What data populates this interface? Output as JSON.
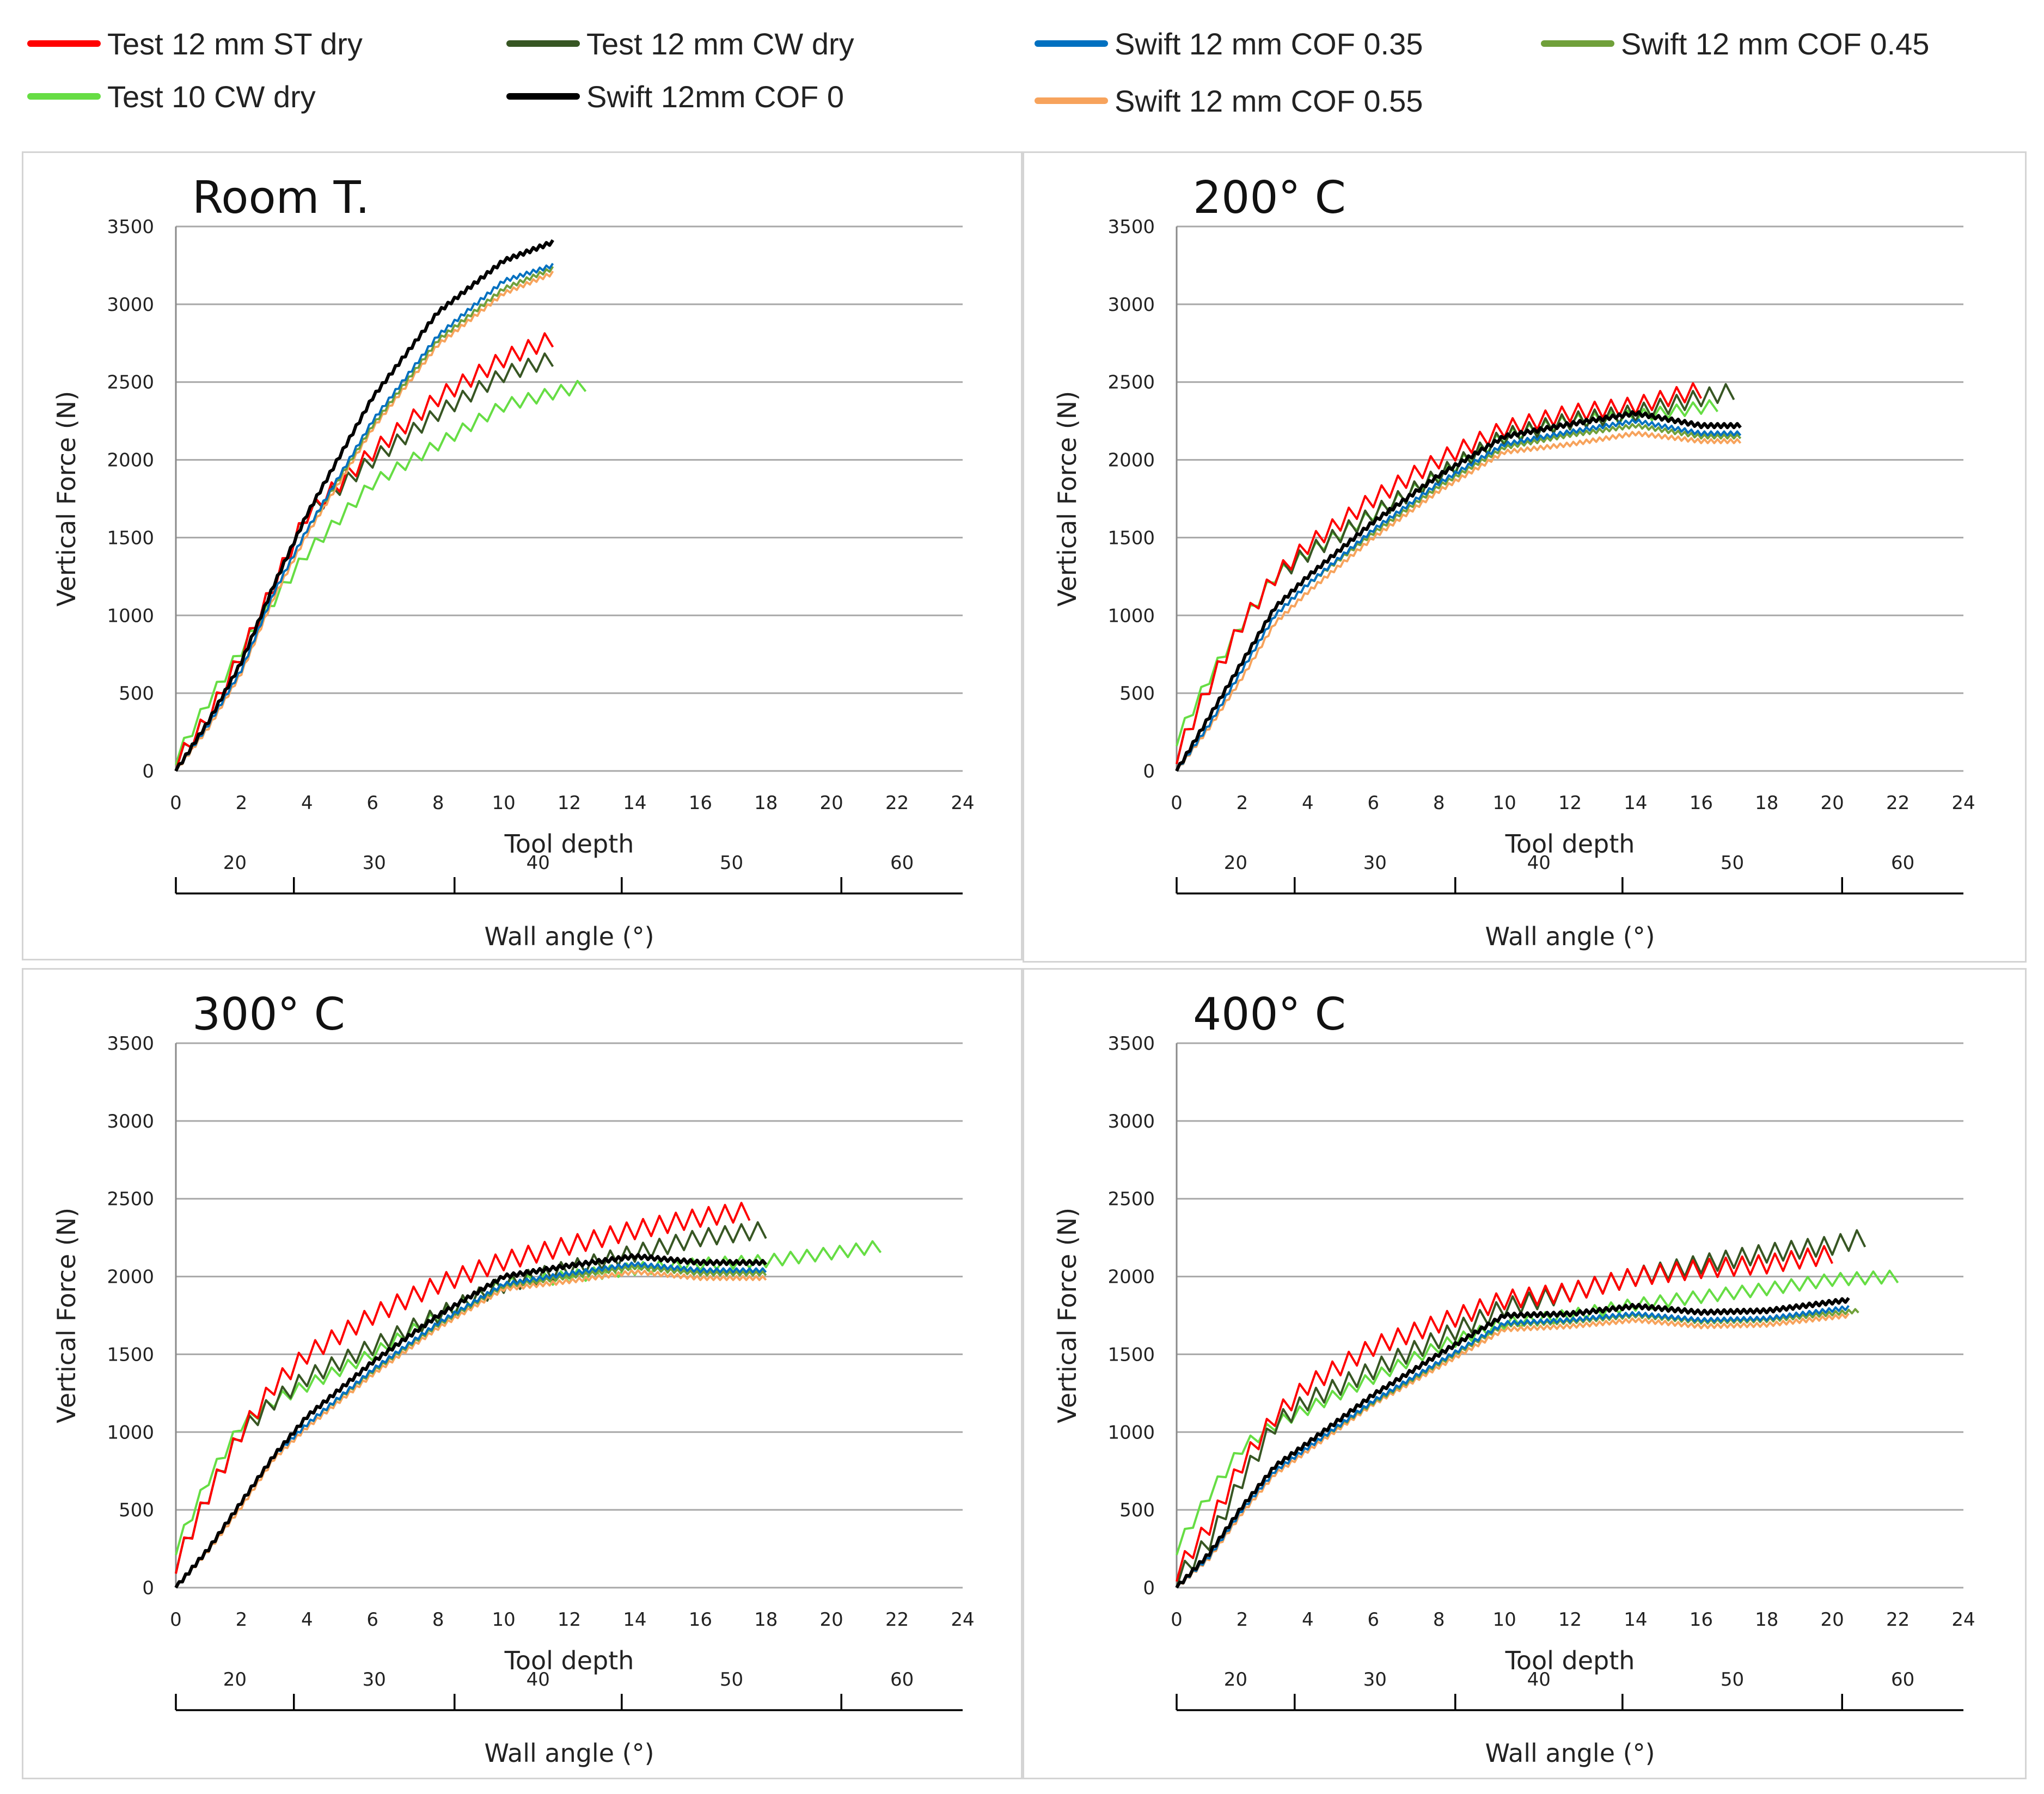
{
  "legend": [
    {
      "label": "Test 12 mm ST dry",
      "color": "#ff0000"
    },
    {
      "label": "Test 12 mm CW dry",
      "color": "#375623"
    },
    {
      "label": "Swift 12 mm COF 0.35",
      "color": "#0070c0"
    },
    {
      "label": "Swift 12 mm COF 0.45",
      "color": "#70a03a"
    },
    {
      "label": "Test 10 CW dry",
      "color": "#66dd44"
    },
    {
      "label": "Swift 12mm COF 0",
      "color": "#000000"
    },
    {
      "label": "Swift 12 mm COF 0.55",
      "color": "#f7a35c"
    }
  ],
  "chart_data": [
    {
      "type": "line",
      "title": "Room T.",
      "xlabel": "Tool depth",
      "ylabel": "Vertical Force (N)",
      "secondary_axis_label": "Wall angle (°)",
      "xlim": [
        0,
        24
      ],
      "ylim": [
        0,
        3500
      ],
      "x_ticks": [
        "0",
        "2",
        "4",
        "6",
        "8",
        "10",
        "12",
        "14",
        "16",
        "18",
        "20",
        "22",
        "24"
      ],
      "y_ticks": [
        "0",
        "500",
        "1000",
        "1500",
        "2000",
        "2500",
        "3000",
        "3500"
      ],
      "wall_angle_labels": [
        "20",
        "30",
        "40",
        "50",
        "60"
      ],
      "wall_angle_separators_depth": [
        0,
        3.6,
        8.5,
        13.6,
        20.3,
        24
      ],
      "series": [
        {
          "name": "Test 12 mm ST dry",
          "x": [
            0,
            1,
            2,
            3,
            4,
            6,
            8,
            10,
            11.5
          ],
          "y": [
            50,
            350,
            750,
            1200,
            1650,
            2050,
            2400,
            2650,
            2780
          ],
          "zig": 110,
          "period": 0.5
        },
        {
          "name": "Test 12 mm CW dry",
          "x": [
            0,
            1,
            2,
            3,
            4,
            6,
            8,
            10,
            11.5
          ],
          "y": [
            50,
            350,
            750,
            1200,
            1650,
            2000,
            2300,
            2550,
            2650
          ],
          "zig": 100,
          "period": 0.5
        },
        {
          "name": "Swift 12 mm COF 0.35",
          "x": [
            0,
            1,
            2,
            3,
            4,
            6,
            8,
            10,
            11.5
          ],
          "y": [
            0,
            300,
            650,
            1150,
            1550,
            2250,
            2800,
            3150,
            3250
          ],
          "zig": 25,
          "period": 0.2
        },
        {
          "name": "Swift 12 mm COF 0.45",
          "x": [
            0,
            1,
            2,
            3,
            4,
            6,
            8,
            10,
            11.5
          ],
          "y": [
            0,
            300,
            650,
            1150,
            1550,
            2220,
            2770,
            3100,
            3230
          ],
          "zig": 25,
          "period": 0.2
        },
        {
          "name": "Test 10 CW dry",
          "x": [
            0,
            1,
            2,
            3,
            4,
            6,
            8,
            10,
            12.5
          ],
          "y": [
            80,
            450,
            780,
            1100,
            1400,
            1850,
            2100,
            2350,
            2480
          ],
          "zig": 80,
          "period": 0.5
        },
        {
          "name": "Swift 12mm COF 0",
          "x": [
            0,
            1,
            2,
            3,
            4,
            6,
            8,
            10,
            11.5
          ],
          "y": [
            0,
            320,
            700,
            1200,
            1650,
            2400,
            2950,
            3280,
            3400
          ],
          "zig": 25,
          "period": 0.2
        },
        {
          "name": "Swift 12 mm COF 0.55",
          "x": [
            0,
            1,
            2,
            3,
            4,
            6,
            8,
            10,
            11.5
          ],
          "y": [
            0,
            280,
            630,
            1120,
            1520,
            2200,
            2740,
            3070,
            3200
          ],
          "zig": 25,
          "period": 0.2
        }
      ]
    },
    {
      "type": "line",
      "title": "200° C",
      "xlabel": "Tool depth",
      "ylabel": "Vertical Force (N)",
      "secondary_axis_label": "Wall angle (°)",
      "xlim": [
        0,
        24
      ],
      "ylim": [
        0,
        3500
      ],
      "x_ticks": [
        "0",
        "2",
        "4",
        "6",
        "8",
        "10",
        "12",
        "14",
        "16",
        "18",
        "20",
        "22",
        "24"
      ],
      "y_ticks": [
        "0",
        "500",
        "1000",
        "1500",
        "2000",
        "2500",
        "3000",
        "3500"
      ],
      "wall_angle_labels": [
        "20",
        "30",
        "40",
        "50",
        "60"
      ],
      "wall_angle_separators_depth": [
        0,
        3.6,
        8.5,
        13.6,
        20.3,
        24
      ],
      "series": [
        {
          "name": "Test 12 mm ST dry",
          "x": [
            0,
            1,
            2,
            3,
            4,
            6,
            8,
            10,
            12,
            14,
            16
          ],
          "y": [
            100,
            550,
            950,
            1250,
            1450,
            1750,
            2000,
            2200,
            2300,
            2350,
            2450
          ],
          "zig": 110,
          "period": 0.5
        },
        {
          "name": "Test 12 mm CW dry",
          "x": [
            0,
            1,
            2,
            3,
            4,
            6,
            8,
            10,
            12,
            14,
            16,
            17.2
          ],
          "y": [
            100,
            550,
            950,
            1250,
            1400,
            1650,
            1900,
            2150,
            2250,
            2300,
            2400,
            2450
          ],
          "zig": 110,
          "period": 0.5
        },
        {
          "name": "Swift 12 mm COF 0.35",
          "x": [
            0,
            1,
            2,
            3,
            4,
            6,
            8,
            10,
            12,
            14,
            16,
            17.2
          ],
          "y": [
            0,
            300,
            650,
            1000,
            1200,
            1550,
            1850,
            2100,
            2180,
            2250,
            2170,
            2170
          ],
          "zig": 25,
          "period": 0.2
        },
        {
          "name": "Swift 12 mm COF 0.45",
          "x": [
            0,
            1,
            2,
            3,
            4,
            6,
            8,
            10,
            12,
            14,
            16,
            17.2
          ],
          "y": [
            0,
            300,
            650,
            1000,
            1200,
            1530,
            1830,
            2080,
            2160,
            2220,
            2150,
            2150
          ],
          "zig": 25,
          "period": 0.2
        },
        {
          "name": "Test 10 CW dry",
          "x": [
            0,
            1,
            2,
            3,
            4,
            6,
            8,
            10,
            12,
            14,
            16.5
          ],
          "y": [
            200,
            600,
            950,
            1250,
            1400,
            1650,
            1900,
            2150,
            2250,
            2280,
            2350
          ],
          "zig": 80,
          "period": 0.5
        },
        {
          "name": "Swift 12mm COF 0",
          "x": [
            0,
            1,
            2,
            3,
            4,
            6,
            8,
            10,
            12,
            14,
            16,
            17.2
          ],
          "y": [
            0,
            350,
            700,
            1050,
            1250,
            1600,
            1900,
            2150,
            2230,
            2300,
            2220,
            2220
          ],
          "zig": 25,
          "period": 0.2
        },
        {
          "name": "Swift 12 mm COF 0.55",
          "x": [
            0,
            1,
            2,
            3,
            4,
            6,
            8,
            10,
            12,
            14,
            16,
            17.2
          ],
          "y": [
            0,
            280,
            600,
            950,
            1150,
            1500,
            1800,
            2050,
            2100,
            2170,
            2120,
            2120
          ],
          "zig": 25,
          "period": 0.2
        }
      ]
    },
    {
      "type": "line",
      "title": "300° C",
      "xlabel": "Tool depth",
      "ylabel": "Vertical Force (N)",
      "secondary_axis_label": "Wall angle (°)",
      "xlim": [
        0,
        24
      ],
      "ylim": [
        0,
        3500
      ],
      "x_ticks": [
        "0",
        "2",
        "4",
        "6",
        "8",
        "10",
        "12",
        "14",
        "16",
        "18",
        "20",
        "22",
        "24"
      ],
      "y_ticks": [
        "0",
        "500",
        "1000",
        "1500",
        "2000",
        "2500",
        "3000",
        "3500"
      ],
      "wall_angle_labels": [
        "20",
        "30",
        "40",
        "50",
        "60"
      ],
      "wall_angle_separators_depth": [
        0,
        3.6,
        8.5,
        13.6,
        20.3,
        24
      ],
      "series": [
        {
          "name": "Test 12 mm ST dry",
          "x": [
            0,
            1,
            2,
            3,
            4,
            6,
            8,
            10,
            12,
            14,
            16,
            17.5
          ],
          "y": [
            150,
            600,
            1000,
            1300,
            1500,
            1750,
            1950,
            2100,
            2200,
            2300,
            2380,
            2420
          ],
          "zig": 120,
          "period": 0.5
        },
        {
          "name": "Test 12 mm CW dry",
          "x": [
            0,
            1,
            2,
            3,
            4,
            6,
            8,
            10,
            12,
            14,
            16,
            18
          ],
          "y": [
            150,
            600,
            1000,
            1200,
            1350,
            1550,
            1750,
            1950,
            2050,
            2150,
            2250,
            2300
          ],
          "zig": 110,
          "period": 0.5
        },
        {
          "name": "Swift 12 mm COF 0.35",
          "x": [
            0,
            1,
            2,
            3,
            4,
            6,
            8,
            10,
            12,
            14,
            16,
            18
          ],
          "y": [
            0,
            250,
            550,
            850,
            1050,
            1400,
            1700,
            1950,
            2020,
            2080,
            2040,
            2040
          ],
          "zig": 25,
          "period": 0.2
        },
        {
          "name": "Swift 12 mm COF 0.45",
          "x": [
            0,
            1,
            2,
            3,
            4,
            6,
            8,
            10,
            12,
            14,
            16,
            18
          ],
          "y": [
            0,
            250,
            550,
            850,
            1050,
            1390,
            1690,
            1940,
            2000,
            2060,
            2020,
            2020
          ],
          "zig": 25,
          "period": 0.2
        },
        {
          "name": "Test 10 CW dry",
          "x": [
            0,
            1,
            2,
            3,
            4,
            6,
            8,
            10,
            12,
            14,
            16,
            18,
            20,
            21.7
          ],
          "y": [
            250,
            700,
            1050,
            1200,
            1300,
            1500,
            1750,
            1950,
            2000,
            2050,
            2080,
            2100,
            2150,
            2200
          ],
          "zig": 80,
          "period": 0.5
        },
        {
          "name": "Swift 12mm COF 0",
          "x": [
            0,
            1,
            2,
            3,
            4,
            6,
            8,
            10,
            12,
            14,
            16,
            18
          ],
          "y": [
            0,
            250,
            550,
            850,
            1100,
            1450,
            1750,
            2000,
            2070,
            2130,
            2090,
            2090
          ],
          "zig": 25,
          "period": 0.2
        },
        {
          "name": "Swift 12 mm COF 0.55",
          "x": [
            0,
            1,
            2,
            3,
            4,
            6,
            8,
            10,
            12,
            14,
            16,
            18
          ],
          "y": [
            0,
            240,
            520,
            830,
            1030,
            1370,
            1670,
            1920,
            1970,
            2030,
            1990,
            1990
          ],
          "zig": 25,
          "period": 0.2
        }
      ]
    },
    {
      "type": "line",
      "title": "400° C",
      "xlabel": "Tool depth",
      "ylabel": "Vertical Force (N)",
      "secondary_axis_label": "Wall angle (°)",
      "xlim": [
        0,
        24
      ],
      "ylim": [
        0,
        3500
      ],
      "x_ticks": [
        "0",
        "2",
        "4",
        "6",
        "8",
        "10",
        "12",
        "14",
        "16",
        "18",
        "20",
        "22",
        "24"
      ],
      "y_ticks": [
        "0",
        "500",
        "1000",
        "1500",
        "2000",
        "2500",
        "3000",
        "3500"
      ],
      "wall_angle_labels": [
        "20",
        "30",
        "40",
        "50",
        "60"
      ],
      "wall_angle_separators_depth": [
        0,
        3.6,
        8.5,
        13.6,
        20.3,
        24
      ],
      "series": [
        {
          "name": "Test 12 mm ST dry",
          "x": [
            0,
            1,
            2,
            3,
            4,
            6,
            8,
            10,
            12,
            14,
            16,
            18,
            20.2
          ],
          "y": [
            100,
            400,
            800,
            1100,
            1300,
            1550,
            1700,
            1850,
            1900,
            2000,
            2050,
            2080,
            2150
          ],
          "zig": 120,
          "period": 0.5
        },
        {
          "name": "Test 12 mm CW dry",
          "x": [
            0,
            1,
            2,
            3,
            4,
            6,
            8,
            10,
            12,
            14,
            16,
            18,
            20,
            21
          ],
          "y": [
            50,
            300,
            700,
            1050,
            1200,
            1400,
            1600,
            1800,
            1900,
            2000,
            2080,
            2150,
            2200,
            2250
          ],
          "zig": 120,
          "period": 0.5
        },
        {
          "name": "Swift 12 mm COF 0.35",
          "x": [
            0,
            1,
            2,
            3,
            4,
            6,
            8,
            10,
            12,
            14,
            16,
            18,
            20.5
          ],
          "y": [
            0,
            200,
            500,
            750,
            900,
            1200,
            1450,
            1700,
            1720,
            1760,
            1720,
            1730,
            1800
          ],
          "zig": 25,
          "period": 0.2
        },
        {
          "name": "Swift 12 mm COF 0.45",
          "x": [
            0,
            1,
            2,
            3,
            4,
            6,
            8,
            10,
            12,
            14,
            16,
            18,
            20.8
          ],
          "y": [
            0,
            200,
            500,
            750,
            900,
            1190,
            1440,
            1690,
            1710,
            1750,
            1710,
            1720,
            1780
          ],
          "zig": 25,
          "period": 0.2
        },
        {
          "name": "Test 10 CW dry",
          "x": [
            0,
            1,
            2,
            3,
            4,
            6,
            8,
            10,
            12,
            14,
            16,
            18,
            20,
            22
          ],
          "y": [
            250,
            600,
            900,
            1050,
            1150,
            1350,
            1550,
            1700,
            1750,
            1820,
            1870,
            1920,
            1980,
            2000
          ],
          "zig": 80,
          "period": 0.5
        },
        {
          "name": "Swift 12mm COF 0",
          "x": [
            0,
            1,
            2,
            3,
            4,
            6,
            8,
            10,
            12,
            14,
            16,
            18,
            20.5
          ],
          "y": [
            0,
            220,
            520,
            780,
            930,
            1240,
            1500,
            1750,
            1760,
            1810,
            1770,
            1780,
            1850
          ],
          "zig": 25,
          "period": 0.2
        },
        {
          "name": "Swift 12 mm COF 0.55",
          "x": [
            0,
            1,
            2,
            3,
            4,
            6,
            8,
            10,
            12,
            14,
            16,
            18,
            20.5
          ],
          "y": [
            0,
            190,
            480,
            730,
            880,
            1180,
            1420,
            1660,
            1680,
            1720,
            1680,
            1690,
            1750
          ],
          "zig": 25,
          "period": 0.2
        }
      ]
    }
  ]
}
